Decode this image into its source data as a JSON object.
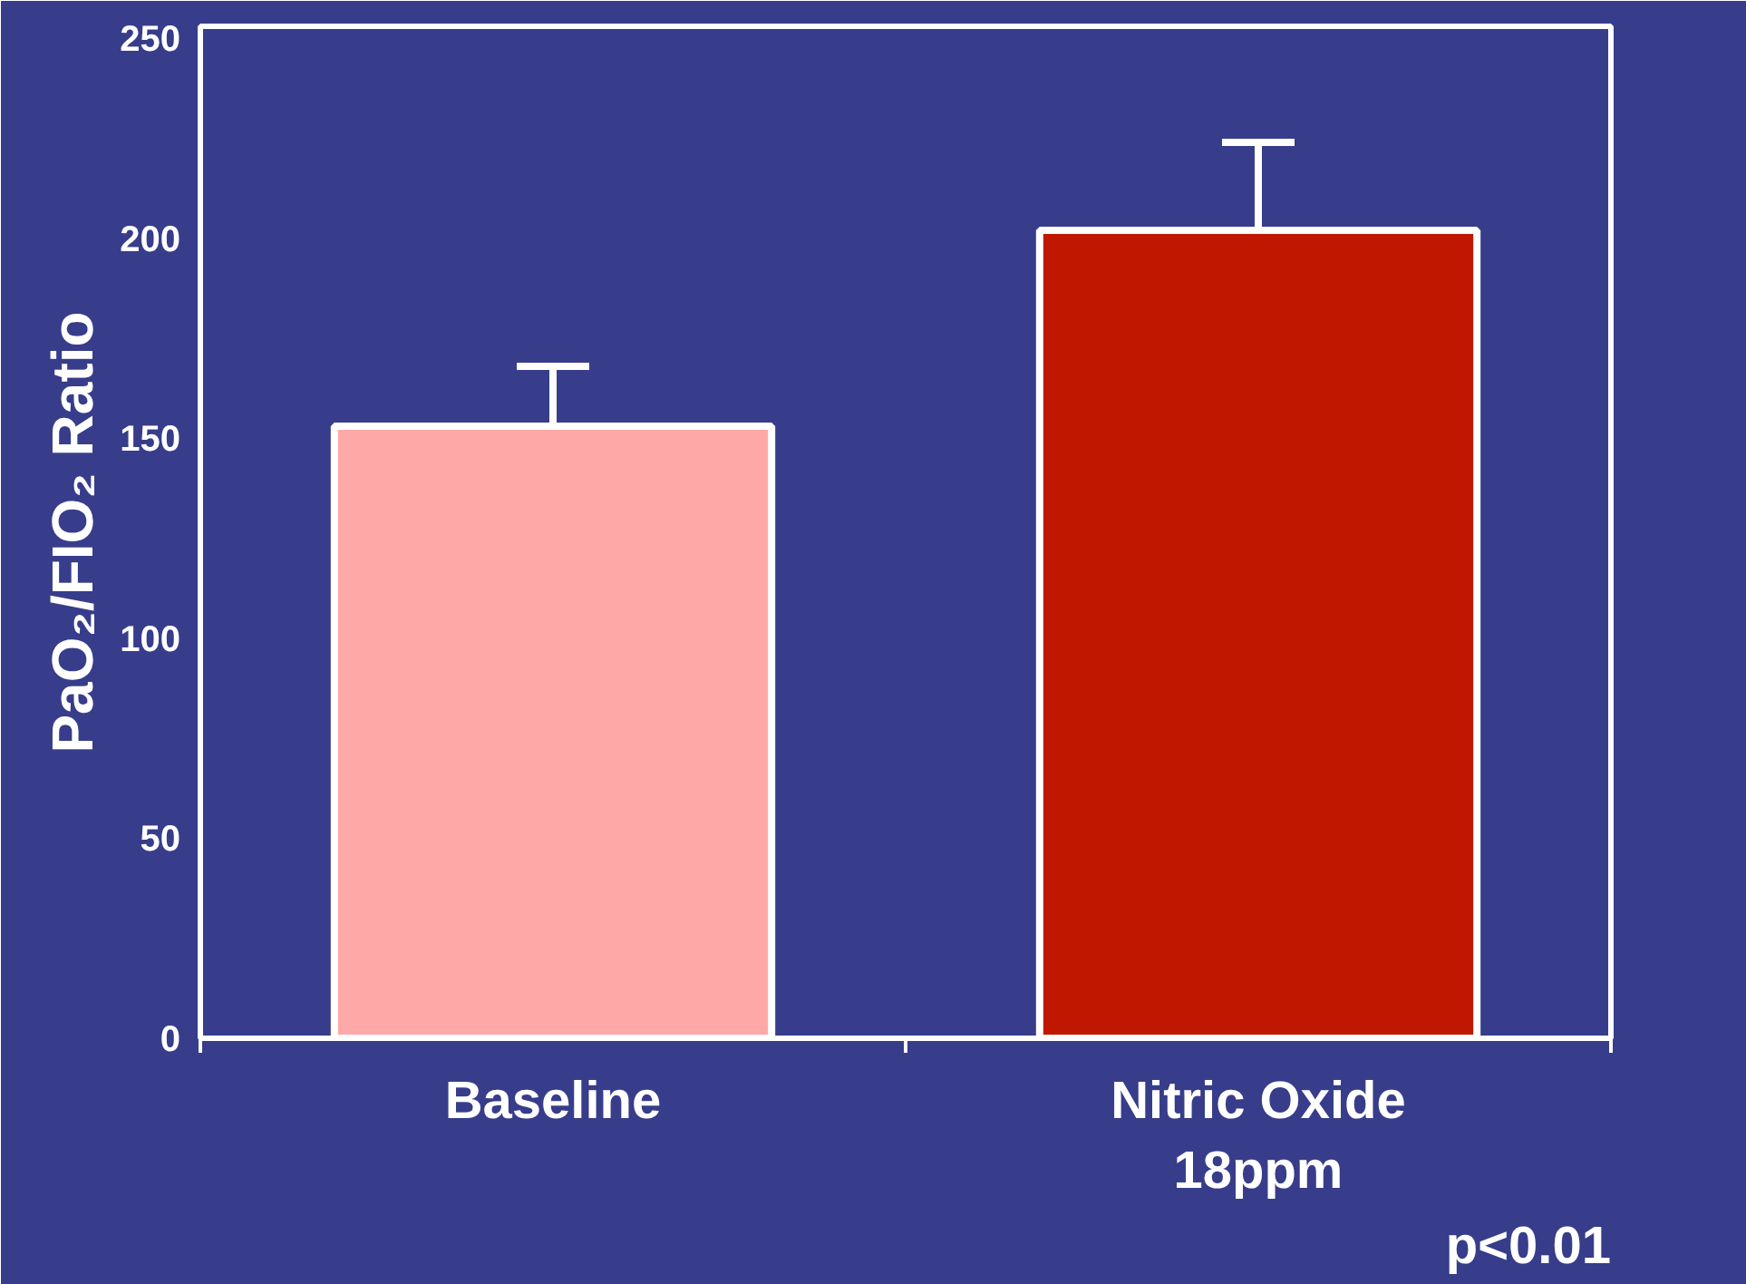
{
  "chart_data": {
    "type": "bar",
    "ylabel": "PaO₂/FIO₂ Ratio",
    "categories": [
      "Baseline",
      "Nitric Oxide\n18ppm"
    ],
    "values": [
      153,
      202
    ],
    "errors": [
      [
        153,
        168
      ],
      [
        202,
        224
      ]
    ],
    "colors": [
      "#ffa8a8",
      "#c01800"
    ],
    "ylim": [
      0,
      253
    ],
    "yticks": [
      0,
      50,
      100,
      150,
      200,
      250
    ],
    "grid": false,
    "annotations": [
      "p<0.01"
    ]
  }
}
